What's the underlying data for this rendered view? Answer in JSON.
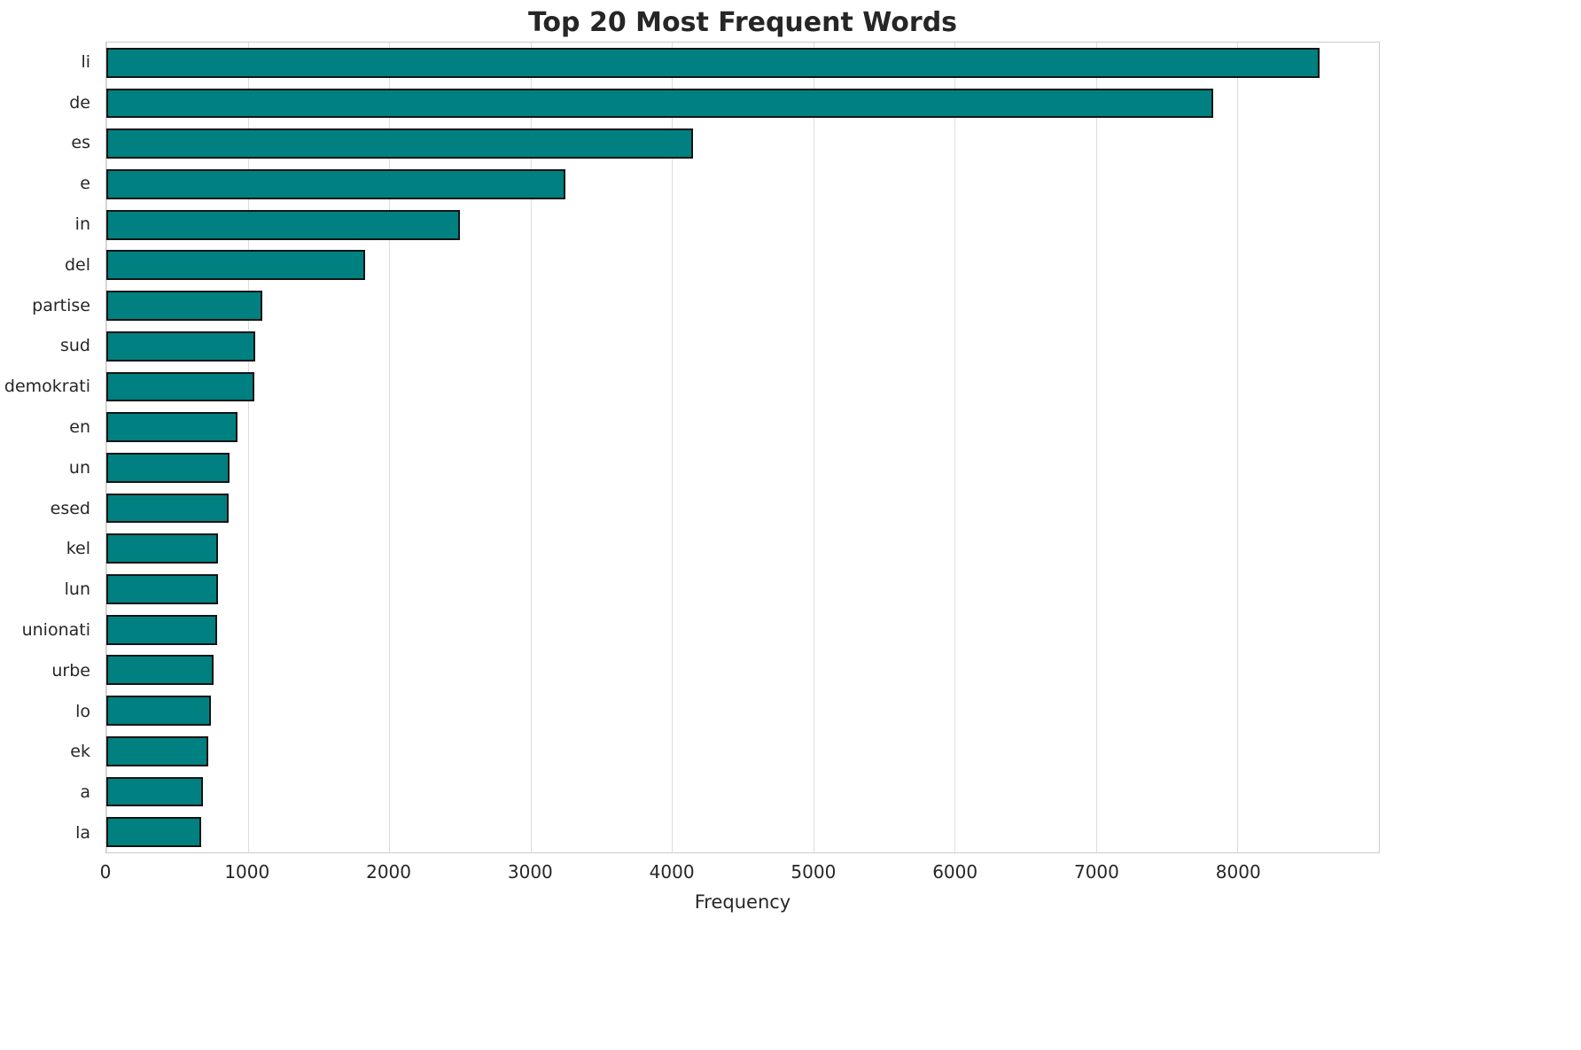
{
  "chart_data": {
    "type": "bar",
    "orientation": "horizontal",
    "title": "Top 20 Most Frequent Words",
    "xlabel": "Frequency",
    "ylabel": "",
    "categories": [
      "li",
      "de",
      "es",
      "e",
      "in",
      "del",
      "partise",
      "sud",
      "demokrati",
      "en",
      "un",
      "esed",
      "kel",
      "lun",
      "unionati",
      "urbe",
      "lo",
      "ek",
      "a",
      "la"
    ],
    "values": [
      8580,
      7830,
      4150,
      3245,
      2500,
      1830,
      1100,
      1052,
      1048,
      927,
      871,
      865,
      790,
      788,
      783,
      758,
      739,
      720,
      683,
      670
    ],
    "xlim": [
      0,
      9000
    ],
    "xticks": [
      0,
      1000,
      2000,
      3000,
      4000,
      5000,
      6000,
      7000,
      8000
    ],
    "grid": "vertical",
    "legend": "none",
    "bar_color": "#008080",
    "bar_edge_color": "#141414",
    "background": "#ffffff"
  }
}
